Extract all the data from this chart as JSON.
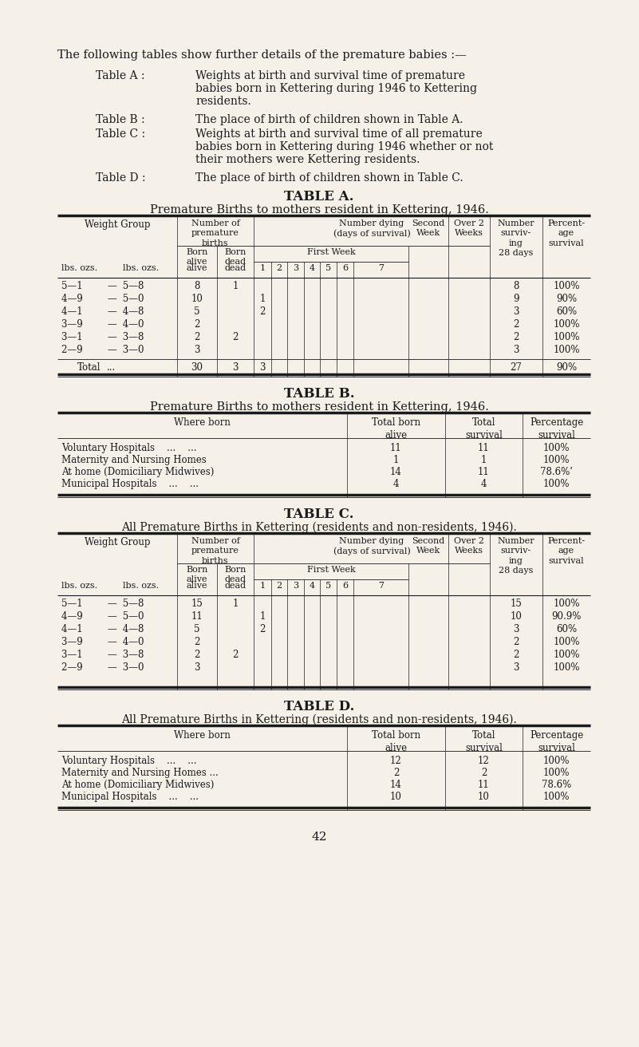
{
  "bg_color": "#f5f0e8",
  "text_color": "#1a1a1a",
  "intro_text": "The following tables show further details of the premature babies :—",
  "table_a_label": "Table A :",
  "table_a_desc1": "Weights at birth and survival time of premature",
  "table_a_desc2": "babies born in Kettering during 1946 to Kettering",
  "table_a_desc3": "residents.",
  "table_b_label": "Table B :",
  "table_b_desc1": "The place of birth of children shown in Table A.",
  "table_c_label": "Table C :",
  "table_c_desc1": "Weights at birth and survival time of all premature",
  "table_c_desc2": "babies born in Kettering during 1946 whether or not",
  "table_c_desc3": "their mothers were Kettering residents.",
  "table_d_label": "Table D :",
  "table_d_desc1": "The place of birth of children shown in Table C.",
  "table_a_title": "TABLE A.",
  "table_a_subtitle": "Premature Births to mothers resident in Kettering, 1946.",
  "table_b_title": "TABLE B.",
  "table_b_subtitle": "Premature Births to mothers resident in Kettering, 1946.",
  "table_c_title": "TABLE C.",
  "table_c_subtitle": "All Premature Births in Kettering (residents and non-residents, 1946).",
  "table_d_title": "TABLE D.",
  "table_d_subtitle": "All Premature Births in Kettering (residents and non-residents, 1946).",
  "page_number": "42",
  "tableA_weight_groups": [
    "5—1  —  5—8",
    "4—9  —  5—0",
    "4—1  —  4—8",
    "3—9  —  4—0",
    "3—1  —  3—8",
    "2—9  —  3—0"
  ],
  "tableA_born_alive": [
    "8",
    "10",
    "5",
    "2",
    "2",
    "3"
  ],
  "tableA_born_dead": [
    "1",
    "",
    "",
    "",
    "2",
    ""
  ],
  "tableA_fw1": [
    "",
    "1",
    "2",
    "",
    "",
    ""
  ],
  "tableA_surviving": [
    "8",
    "9",
    "3",
    "2",
    "2",
    "3"
  ],
  "tableA_percentage": [
    "100%",
    "90%",
    "60%",
    "100%",
    "100%",
    "100%"
  ],
  "tableA_total_alive": "30",
  "tableA_total_dead": "3",
  "tableA_total_fw": "3",
  "tableA_total_surv": "27",
  "tableA_total_pct": "90%",
  "tableB_where": [
    "Voluntary Hospitals    ...    ...",
    "Maternity and Nursing Homes",
    "At home (Domiciliary Midwives)",
    "Municipal Hospitals    ...    ..."
  ],
  "tableB_born_alive": [
    "11",
    "1",
    "14",
    "4"
  ],
  "tableB_total_surv": [
    "11",
    "1",
    "11",
    "4"
  ],
  "tableB_pct": [
    "100%",
    "100%",
    "78.6%’",
    "100%"
  ],
  "tableC_weight_groups": [
    "5—1  —  5—8",
    "4—9  —  5—0",
    "4—1  —  4—8",
    "3—9  —  4—0",
    "3—1  —  3—8",
    "2—9  —  3—0"
  ],
  "tableC_born_alive": [
    "15",
    "11",
    "5",
    "2",
    "2",
    "3"
  ],
  "tableC_born_dead": [
    "1",
    "",
    "",
    "",
    "2",
    ""
  ],
  "tableC_fw1": [
    "",
    "1",
    "2",
    "",
    "",
    ""
  ],
  "tableC_surviving": [
    "15",
    "10",
    "3",
    "2",
    "2",
    "3"
  ],
  "tableC_percentage": [
    "100%",
    "90.9%",
    "60%",
    "100%",
    "100%",
    "100%"
  ],
  "tableD_where": [
    "Voluntary Hospitals    ...    ...",
    "Maternity and Nursing Homes ...",
    "At home (Domiciliary Midwives)",
    "Municipal Hospitals    ...    ..."
  ],
  "tableD_born_alive": [
    "12",
    "2",
    "14",
    "10"
  ],
  "tableD_total_surv": [
    "12",
    "2",
    "11",
    "10"
  ],
  "tableD_pct": [
    "100%",
    "100%",
    "78.6%",
    "100%"
  ]
}
